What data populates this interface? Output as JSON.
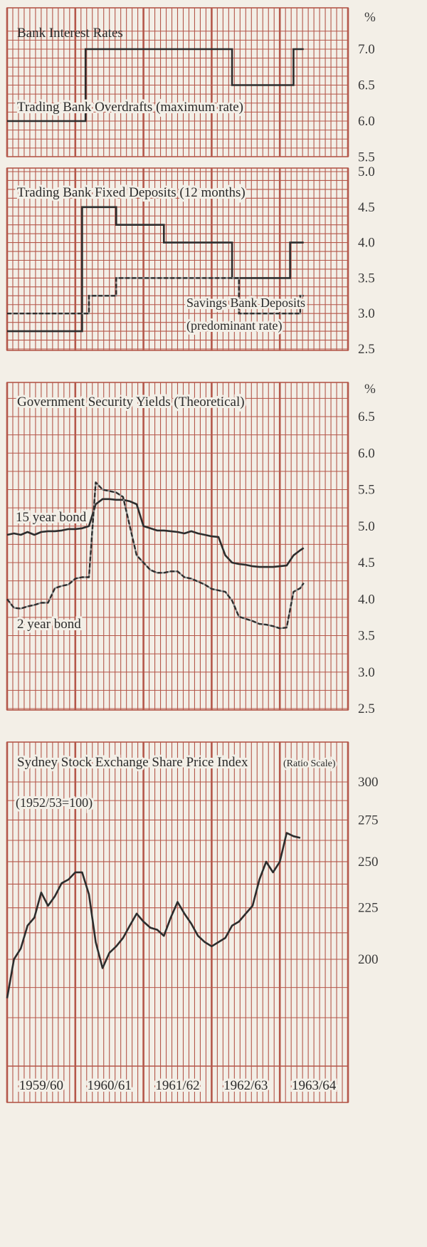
{
  "colors": {
    "grid": "#b4574a",
    "line": "#2d2d2d",
    "paper": "#f3efe7"
  },
  "x_labels": [
    "1959/60",
    "1960/61",
    "1961/62",
    "1962/63",
    "1963/64"
  ],
  "chart_data": [
    {
      "id": "bank-interest-rates",
      "type": "line",
      "title": "Bank Interest Rates",
      "unit": "%",
      "ytick_labels": [
        "7.0",
        "6.5",
        "6.0",
        "5.5"
      ],
      "ylim": [
        5.5,
        7.25
      ],
      "grid": true,
      "series": [
        {
          "name": "Trading Bank Overdrafts (maximum rate)",
          "style": "solid",
          "step": true,
          "x": [
            0.0,
            1.15,
            1.15,
            3.3,
            3.3,
            4.2,
            4.2,
            4.35
          ],
          "values": [
            6.0,
            6.0,
            7.0,
            7.0,
            6.5,
            6.5,
            7.0,
            7.0
          ]
        }
      ]
    },
    {
      "id": "trading-bank-deposits",
      "type": "line",
      "title": "Trading Bank Fixed Deposits (12 months)",
      "ytick_labels": [
        "5.0",
        "4.5",
        "4.0",
        "3.5",
        "3.0",
        "2.5"
      ],
      "ylim": [
        2.5,
        5.0
      ],
      "grid": true,
      "annotations": [
        "Savings Bank Deposits",
        "(predominant rate)"
      ],
      "series": [
        {
          "name": "Trading Bank Fixed Deposits (12 months)",
          "style": "solid",
          "step": true,
          "x": [
            0.0,
            1.1,
            1.1,
            1.6,
            1.6,
            2.3,
            2.3,
            3.3,
            3.3,
            4.15,
            4.15,
            4.35
          ],
          "values": [
            2.75,
            2.75,
            4.5,
            4.5,
            4.25,
            4.25,
            4.0,
            4.0,
            3.5,
            3.5,
            4.0,
            4.0
          ]
        },
        {
          "name": "Savings Bank Deposits",
          "style": "dashed",
          "step": true,
          "x": [
            0.0,
            1.2,
            1.2,
            1.6,
            1.6,
            3.4,
            3.4,
            4.3,
            4.3,
            4.35
          ],
          "values": [
            3.0,
            3.0,
            3.25,
            3.25,
            3.5,
            3.5,
            3.0,
            3.0,
            3.25,
            3.25
          ]
        }
      ]
    },
    {
      "id": "government-security-yields",
      "type": "line",
      "title": "Government Security Yields (Theoretical)",
      "unit": "%",
      "ytick_labels": [
        "6.5",
        "6.0",
        "5.5",
        "5.0",
        "4.5",
        "4.0",
        "3.5",
        "3.0",
        "2.5"
      ],
      "ylim": [
        2.5,
        6.8
      ],
      "grid": true,
      "series": [
        {
          "name": "15 year bond",
          "style": "solid",
          "x": [
            0,
            0.1,
            0.2,
            0.3,
            0.4,
            0.5,
            0.6,
            0.7,
            0.8,
            0.9,
            1.0,
            1.1,
            1.2,
            1.3,
            1.4,
            1.5,
            1.6,
            1.7,
            1.8,
            1.9,
            2.0,
            2.1,
            2.2,
            2.3,
            2.4,
            2.5,
            2.6,
            2.7,
            2.8,
            2.9,
            3.0,
            3.1,
            3.2,
            3.3,
            3.4,
            3.5,
            3.6,
            3.7,
            3.8,
            3.9,
            4.0,
            4.1,
            4.2,
            4.3,
            4.35
          ],
          "values": [
            4.88,
            4.9,
            4.88,
            4.92,
            4.88,
            4.92,
            4.93,
            4.93,
            4.94,
            4.96,
            4.96,
            4.97,
            5.0,
            5.3,
            5.37,
            5.37,
            5.36,
            5.36,
            5.34,
            5.3,
            5.0,
            4.97,
            4.94,
            4.94,
            4.93,
            4.92,
            4.9,
            4.93,
            4.9,
            4.88,
            4.86,
            4.85,
            4.6,
            4.5,
            4.48,
            4.47,
            4.45,
            4.44,
            4.44,
            4.44,
            4.45,
            4.46,
            4.6,
            4.67,
            4.7
          ]
        },
        {
          "name": "2 year bond",
          "style": "dashed",
          "x": [
            0,
            0.1,
            0.2,
            0.3,
            0.4,
            0.5,
            0.6,
            0.7,
            0.8,
            0.9,
            1.0,
            1.1,
            1.2,
            1.3,
            1.4,
            1.5,
            1.6,
            1.7,
            1.8,
            1.9,
            2.0,
            2.1,
            2.2,
            2.3,
            2.4,
            2.5,
            2.6,
            2.7,
            2.8,
            2.9,
            3.0,
            3.1,
            3.2,
            3.3,
            3.4,
            3.5,
            3.6,
            3.7,
            3.8,
            3.9,
            4.0,
            4.1,
            4.2,
            4.3,
            4.35
          ],
          "values": [
            4.0,
            3.88,
            3.87,
            3.9,
            3.92,
            3.95,
            3.95,
            4.15,
            4.18,
            4.2,
            4.28,
            4.3,
            4.3,
            5.6,
            5.5,
            5.48,
            5.46,
            5.4,
            5.0,
            4.6,
            4.5,
            4.4,
            4.36,
            4.36,
            4.38,
            4.38,
            4.3,
            4.28,
            4.24,
            4.2,
            4.14,
            4.12,
            4.1,
            3.98,
            3.76,
            3.73,
            3.7,
            3.66,
            3.65,
            3.63,
            3.6,
            3.61,
            4.1,
            4.15,
            4.22
          ]
        }
      ]
    },
    {
      "id": "sydney-share-price-index",
      "type": "line",
      "title": "Sydney Stock Exchange Share Price Index",
      "scale_note": "(Ratio Scale)",
      "base_note": "(1952/53=100)",
      "ytick_labels": [
        "300",
        "275",
        "250",
        "225",
        "200"
      ],
      "ylim": [
        180,
        300
      ],
      "log_scale": true,
      "grid": true,
      "series": [
        {
          "name": "Sydney Stock Exchange Share Price Index",
          "style": "solid",
          "x": [
            0,
            0.1,
            0.2,
            0.3,
            0.4,
            0.5,
            0.6,
            0.7,
            0.8,
            0.9,
            1.0,
            1.1,
            1.2,
            1.3,
            1.4,
            1.5,
            1.6,
            1.7,
            1.8,
            1.9,
            2.0,
            2.1,
            2.2,
            2.3,
            2.4,
            2.5,
            2.6,
            2.7,
            2.8,
            2.9,
            3.0,
            3.1,
            3.2,
            3.3,
            3.4,
            3.5,
            3.6,
            3.7,
            3.8,
            3.9,
            4.0,
            4.1,
            4.2,
            4.3
          ],
          "values": [
            183,
            200,
            205,
            216,
            220,
            233,
            226,
            231,
            238,
            240,
            244,
            244,
            232,
            208,
            196,
            203,
            206,
            210,
            216,
            222,
            218,
            215,
            214,
            211,
            220,
            228,
            222,
            217,
            211,
            208,
            206,
            208,
            210,
            216,
            218,
            222,
            226,
            240,
            250,
            244,
            250,
            267,
            265,
            264
          ]
        }
      ]
    }
  ]
}
